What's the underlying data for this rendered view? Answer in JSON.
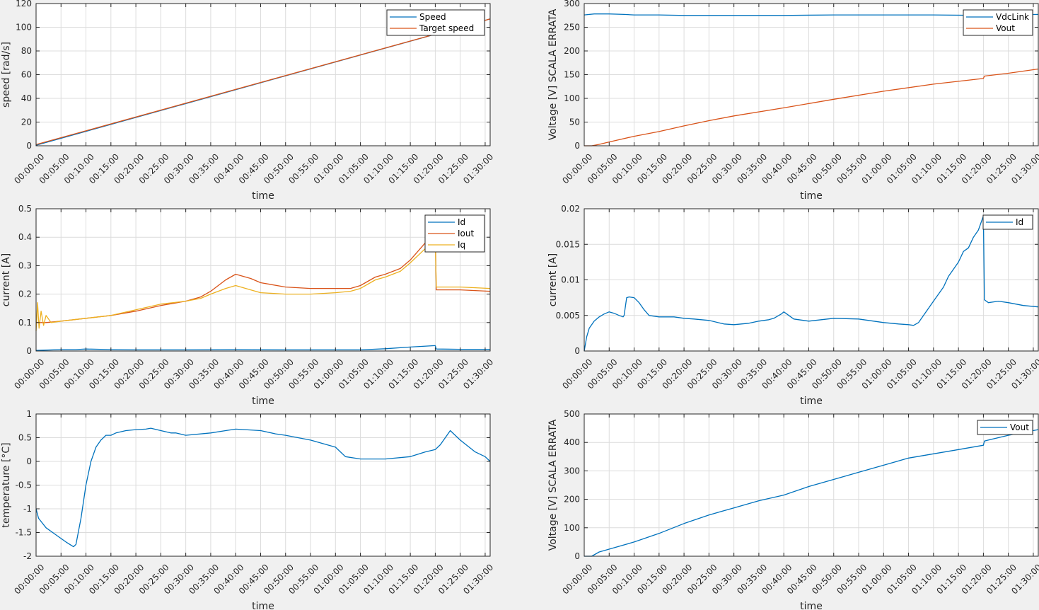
{
  "chart_data": [
    {
      "id": "speed",
      "type": "line",
      "xlabel": "time",
      "ylabel": "speed [rad/s]",
      "x_ticks": [
        "00:00:00",
        "00:05:00",
        "00:10:00",
        "00:15:00",
        "00:20:00",
        "00:25:00",
        "00:30:00",
        "00:35:00",
        "00:40:00",
        "00:45:00",
        "00:50:00",
        "00:55:00",
        "01:00:00",
        "01:05:00",
        "01:10:00",
        "01:15:00",
        "01:20:00",
        "01:25:00",
        "01:30:00"
      ],
      "xlim_min": [
        0,
        91
      ],
      "ylim": [
        0,
        120
      ],
      "y_ticks": [
        "0",
        "20",
        "40",
        "60",
        "80",
        "100",
        "120"
      ],
      "y_tick_values": [
        0,
        20,
        40,
        60,
        80,
        100,
        120
      ],
      "grid": true,
      "legend": "top-right",
      "series": [
        {
          "name": "Speed",
          "color": "#0072BD",
          "x": [
            0,
            91
          ],
          "y": [
            0.5,
            107
          ]
        },
        {
          "name": "Target speed",
          "color": "#D95319",
          "x": [
            0,
            91
          ],
          "y": [
            1,
            107
          ]
        }
      ]
    },
    {
      "id": "voltage1",
      "type": "line",
      "xlabel": "time",
      "ylabel": "Voltage [V] SCALA ERRATA",
      "x_ticks": [
        "00:00:00",
        "00:05:00",
        "00:10:00",
        "00:15:00",
        "00:20:00",
        "00:25:00",
        "00:30:00",
        "00:35:00",
        "00:40:00",
        "00:45:00",
        "00:50:00",
        "00:55:00",
        "01:00:00",
        "01:05:00",
        "01:10:00",
        "01:15:00",
        "01:20:00",
        "01:25:00",
        "01:30:00"
      ],
      "xlim_min": [
        0,
        91
      ],
      "ylim": [
        0,
        300
      ],
      "y_ticks": [
        "0",
        "50",
        "100",
        "150",
        "200",
        "250",
        "300"
      ],
      "y_tick_values": [
        0,
        50,
        100,
        150,
        200,
        250,
        300
      ],
      "grid": true,
      "legend": "top-right",
      "series": [
        {
          "name": "VdcLink",
          "color": "#0072BD",
          "x": [
            0,
            2,
            5,
            8,
            10,
            15,
            20,
            30,
            40,
            50,
            60,
            70,
            80,
            85,
            91
          ],
          "y": [
            276,
            278,
            278,
            277,
            276,
            276,
            275,
            275,
            275,
            276,
            276,
            276,
            275,
            276,
            277
          ]
        },
        {
          "name": "Vout",
          "color": "#D95319",
          "x": [
            0,
            1.5,
            3,
            5,
            10,
            15,
            20,
            25,
            30,
            40,
            50,
            60,
            70,
            80,
            80.2,
            85,
            91
          ],
          "y": [
            0,
            0,
            3,
            8,
            20,
            30,
            42,
            53,
            63,
            80,
            98,
            115,
            130,
            142,
            147,
            153,
            162
          ]
        }
      ]
    },
    {
      "id": "current1",
      "type": "line",
      "xlabel": "time",
      "ylabel": "current [A]",
      "x_ticks": [
        "00:00:00",
        "00:05:00",
        "00:10:00",
        "00:15:00",
        "00:20:00",
        "00:25:00",
        "00:30:00",
        "00:35:00",
        "00:40:00",
        "00:45:00",
        "00:50:00",
        "00:55:00",
        "01:00:00",
        "01:05:00",
        "01:10:00",
        "01:15:00",
        "01:20:00",
        "01:25:00",
        "01:30:00"
      ],
      "xlim_min": [
        0,
        91
      ],
      "ylim": [
        0,
        0.5
      ],
      "y_ticks": [
        "0",
        "0.1",
        "0.2",
        "0.3",
        "0.4",
        "0.5"
      ],
      "y_tick_values": [
        0,
        0.1,
        0.2,
        0.3,
        0.4,
        0.5
      ],
      "grid": true,
      "legend": "top-right",
      "series": [
        {
          "name": "Id",
          "color": "#0072BD",
          "x": [
            0,
            5,
            8,
            10,
            15,
            20,
            30,
            40,
            50,
            60,
            65,
            70,
            75,
            80,
            80.2,
            85,
            91
          ],
          "y": [
            0.002,
            0.005,
            0.005,
            0.007,
            0.005,
            0.004,
            0.004,
            0.005,
            0.004,
            0.004,
            0.004,
            0.008,
            0.014,
            0.019,
            0.007,
            0.006,
            0.006
          ]
        },
        {
          "name": "Iout",
          "color": "#D95319",
          "x": [
            0,
            2,
            5,
            10,
            15,
            20,
            25,
            30,
            33,
            35,
            38,
            40,
            43,
            45,
            50,
            55,
            60,
            63,
            65,
            68,
            70,
            73,
            75,
            78,
            80,
            80.2,
            85,
            91
          ],
          "y": [
            0.1,
            0.1,
            0.105,
            0.115,
            0.125,
            0.14,
            0.16,
            0.175,
            0.19,
            0.21,
            0.25,
            0.27,
            0.255,
            0.24,
            0.225,
            0.22,
            0.22,
            0.22,
            0.23,
            0.26,
            0.27,
            0.29,
            0.32,
            0.38,
            0.43,
            0.215,
            0.215,
            0.21
          ]
        },
        {
          "name": "Iq",
          "color": "#EDB120",
          "x": [
            0,
            0.3,
            0.6,
            1,
            1.5,
            2,
            3,
            5,
            10,
            15,
            20,
            25,
            30,
            33,
            35,
            38,
            40,
            43,
            45,
            50,
            55,
            60,
            63,
            65,
            68,
            70,
            73,
            75,
            78,
            80,
            80.2,
            85,
            91
          ],
          "y": [
            0.07,
            0.17,
            0.08,
            0.14,
            0.09,
            0.125,
            0.1,
            0.105,
            0.115,
            0.125,
            0.145,
            0.165,
            0.175,
            0.185,
            0.2,
            0.22,
            0.23,
            0.215,
            0.205,
            0.2,
            0.2,
            0.205,
            0.21,
            0.22,
            0.25,
            0.26,
            0.28,
            0.31,
            0.36,
            0.4,
            0.225,
            0.225,
            0.22
          ]
        }
      ]
    },
    {
      "id": "current2",
      "type": "line",
      "xlabel": "time",
      "ylabel": "current [A]",
      "x_ticks": [
        "00:00:00",
        "00:05:00",
        "00:10:00",
        "00:15:00",
        "00:20:00",
        "00:25:00",
        "00:30:00",
        "00:35:00",
        "00:40:00",
        "00:45:00",
        "00:50:00",
        "00:55:00",
        "01:00:00",
        "01:05:00",
        "01:10:00",
        "01:15:00",
        "01:20:00",
        "01:25:00",
        "01:30:00"
      ],
      "xlim_min": [
        0,
        91
      ],
      "ylim": [
        0,
        0.02
      ],
      "y_ticks": [
        "0",
        "0.005",
        "0.01",
        "0.015",
        "0.02"
      ],
      "y_tick_values": [
        0,
        0.005,
        0.01,
        0.015,
        0.02
      ],
      "grid": true,
      "legend": "top-right",
      "series": [
        {
          "name": "Id",
          "color": "#0072BD",
          "x": [
            0,
            0.5,
            1,
            2,
            3,
            4,
            5,
            6,
            7,
            7.8,
            8,
            8.5,
            9,
            10,
            11,
            12,
            13,
            15,
            18,
            20,
            22,
            25,
            28,
            30,
            33,
            35,
            37,
            38,
            39.5,
            40,
            42,
            45,
            50,
            55,
            60,
            63,
            65,
            66,
            67,
            68,
            70,
            72,
            73,
            75,
            76,
            77,
            78,
            79,
            80,
            80.2,
            81,
            83,
            85,
            88,
            91
          ],
          "y": [
            0,
            0.002,
            0.0032,
            0.0042,
            0.0048,
            0.0052,
            0.0055,
            0.0053,
            0.005,
            0.0048,
            0.005,
            0.0075,
            0.0076,
            0.0075,
            0.0068,
            0.0058,
            0.005,
            0.0048,
            0.0048,
            0.0046,
            0.0045,
            0.0043,
            0.0038,
            0.0037,
            0.0039,
            0.0042,
            0.0044,
            0.0046,
            0.0052,
            0.0055,
            0.0045,
            0.0042,
            0.0046,
            0.0045,
            0.004,
            0.0038,
            0.0037,
            0.0036,
            0.004,
            0.005,
            0.007,
            0.009,
            0.0105,
            0.0125,
            0.014,
            0.0145,
            0.016,
            0.017,
            0.019,
            0.0072,
            0.0068,
            0.007,
            0.0068,
            0.0064,
            0.0062
          ]
        }
      ]
    },
    {
      "id": "temperature",
      "type": "line",
      "xlabel": "time",
      "ylabel": "temperature [°C]",
      "x_ticks": [
        "00:00:00",
        "00:05:00",
        "00:10:00",
        "00:15:00",
        "00:20:00",
        "00:25:00",
        "00:30:00",
        "00:35:00",
        "00:40:00",
        "00:45:00",
        "00:50:00",
        "00:55:00",
        "01:00:00",
        "01:05:00",
        "01:10:00",
        "01:15:00",
        "01:20:00",
        "01:25:00",
        "01:30:00"
      ],
      "xlim_min": [
        0,
        91
      ],
      "ylim": [
        -2,
        1
      ],
      "y_ticks": [
        "-2",
        "-1.5",
        "-1",
        "-0.5",
        "0",
        "0.5",
        "1"
      ],
      "y_tick_values": [
        -2,
        -1.5,
        -1,
        -0.5,
        0,
        0.5,
        1
      ],
      "grid": true,
      "legend": "none",
      "series": [
        {
          "name": "",
          "color": "#0072BD",
          "x": [
            0,
            0.5,
            2,
            4,
            6,
            7.5,
            8,
            9,
            10,
            11,
            12,
            13,
            14,
            15,
            16,
            18,
            20,
            22,
            23,
            25,
            27,
            28,
            30,
            35,
            38,
            40,
            45,
            48,
            50,
            55,
            60,
            61,
            62,
            65,
            70,
            75,
            78,
            80,
            81,
            83,
            85,
            88,
            90,
            91
          ],
          "y": [
            -1,
            -1.2,
            -1.4,
            -1.55,
            -1.7,
            -1.8,
            -1.75,
            -1.2,
            -0.5,
            0,
            0.3,
            0.45,
            0.55,
            0.55,
            0.6,
            0.65,
            0.67,
            0.68,
            0.7,
            0.65,
            0.6,
            0.6,
            0.55,
            0.6,
            0.65,
            0.68,
            0.65,
            0.58,
            0.55,
            0.45,
            0.3,
            0.2,
            0.1,
            0.05,
            0.05,
            0.1,
            0.2,
            0.25,
            0.35,
            0.65,
            0.45,
            0.2,
            0.1,
            0.0
          ]
        }
      ]
    },
    {
      "id": "voltage2",
      "type": "line",
      "xlabel": "time",
      "ylabel": "Voltage [V] SCALA ERRATA",
      "x_ticks": [
        "00:00:00",
        "00:05:00",
        "00:10:00",
        "00:15:00",
        "00:20:00",
        "00:25:00",
        "00:30:00",
        "00:35:00",
        "00:40:00",
        "00:45:00",
        "00:50:00",
        "00:55:00",
        "01:00:00",
        "01:05:00",
        "01:10:00",
        "01:15:00",
        "01:20:00",
        "01:25:00",
        "01:30:00"
      ],
      "xlim_min": [
        0,
        91
      ],
      "ylim": [
        0,
        500
      ],
      "y_ticks": [
        "0",
        "100",
        "200",
        "300",
        "400",
        "500"
      ],
      "y_tick_values": [
        0,
        100,
        200,
        300,
        400,
        500
      ],
      "grid": true,
      "legend": "top-right",
      "series": [
        {
          "name": "Vout",
          "color": "#0072BD",
          "x": [
            0,
            1.5,
            2,
            3,
            5,
            10,
            15,
            20,
            25,
            30,
            35,
            40,
            45,
            50,
            55,
            60,
            65,
            70,
            75,
            80,
            80.2,
            85,
            91
          ],
          "y": [
            0,
            0,
            5,
            15,
            25,
            50,
            80,
            115,
            145,
            170,
            195,
            215,
            245,
            270,
            295,
            320,
            345,
            360,
            375,
            390,
            405,
            425,
            445
          ]
        }
      ]
    }
  ]
}
